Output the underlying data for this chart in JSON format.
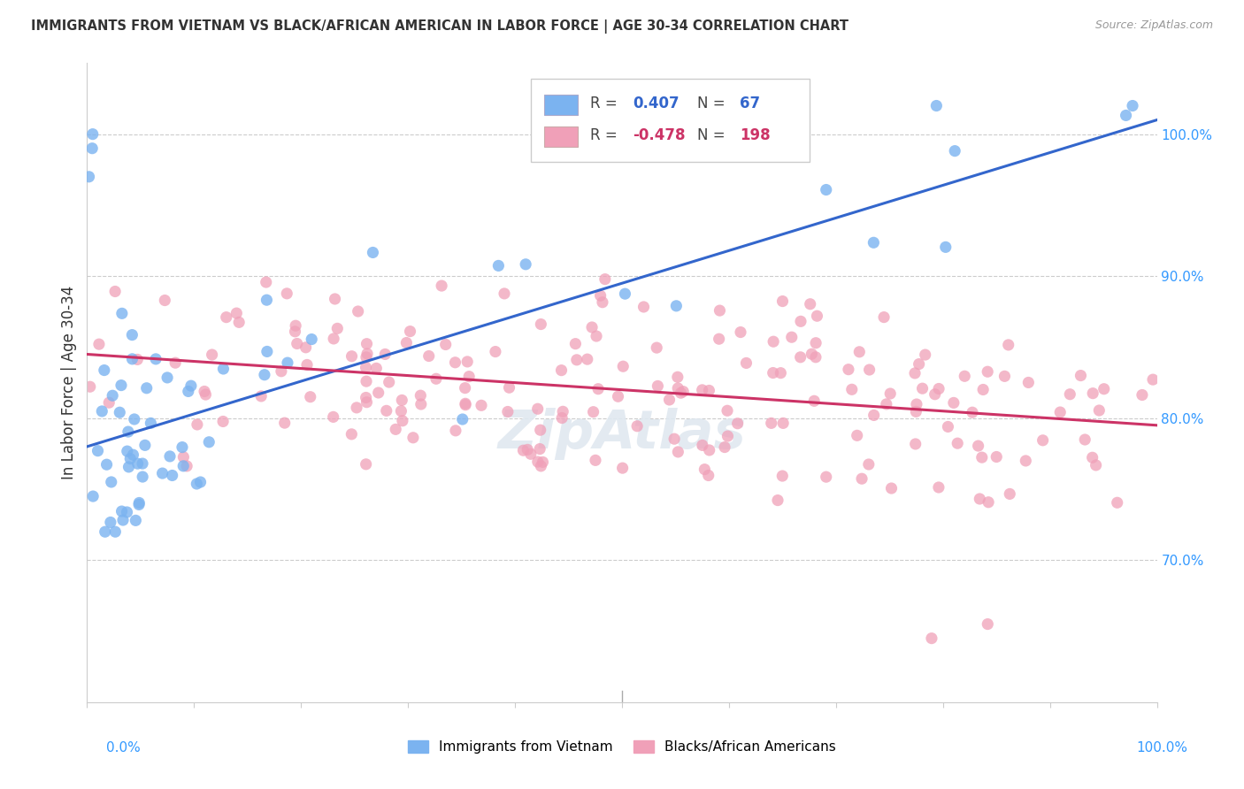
{
  "title": "IMMIGRANTS FROM VIETNAM VS BLACK/AFRICAN AMERICAN IN LABOR FORCE | AGE 30-34 CORRELATION CHART",
  "source": "Source: ZipAtlas.com",
  "ylabel": "In Labor Force | Age 30-34",
  "xlim": [
    0.0,
    1.0
  ],
  "ylim": [
    0.6,
    1.05
  ],
  "ytick_vals": [
    0.7,
    0.8,
    0.9,
    1.0
  ],
  "ytick_labels": [
    "70.0%",
    "80.0%",
    "90.0%",
    "100.0%"
  ],
  "r_blue": 0.407,
  "n_blue": 67,
  "r_pink": -0.478,
  "n_pink": 198,
  "blue_color": "#7bb3f0",
  "pink_color": "#f0a0b8",
  "blue_line_color": "#3366cc",
  "pink_line_color": "#cc3366",
  "legend_blue_label": "Immigrants from Vietnam",
  "legend_pink_label": "Blacks/African Americans",
  "blue_line_x0": 0.0,
  "blue_line_y0": 0.78,
  "blue_line_x1": 1.0,
  "blue_line_y1": 1.01,
  "pink_line_x0": 0.0,
  "pink_line_y0": 0.845,
  "pink_line_x1": 1.0,
  "pink_line_y1": 0.795
}
